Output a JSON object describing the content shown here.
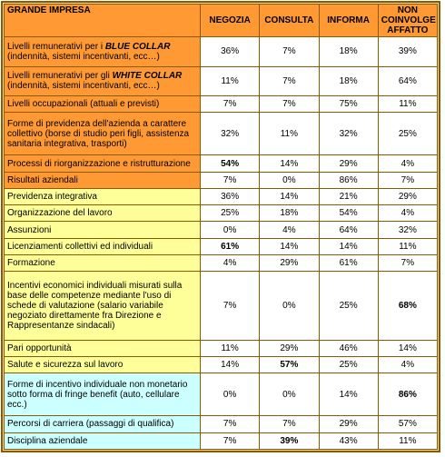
{
  "table": {
    "header": [
      "GRANDE IMPRESA",
      "NEGOZIA",
      "CONSULTA",
      "INFORMA",
      "NON COINVOLGE AFFATTO"
    ],
    "header_color": "#ff9933",
    "rows": [
      {
        "label": "Livelli remunerativi per i ",
        "label_em": "BLUE COLLAR",
        "label_rest": " (indennità, sistemi incentivanti, ecc…)",
        "values": [
          "36%",
          "7%",
          "18%",
          "39%"
        ],
        "color": "#ff9933"
      },
      {
        "label": "Livelli remunerativi per gli ",
        "label_em": "WHITE COLLAR",
        "label_rest": " (indennità, sistemi incentivanti, ecc…)",
        "values": [
          "11%",
          "7%",
          "18%",
          "64%"
        ],
        "color": "#ff9933"
      },
      {
        "label": "Livelli occupazionali (attuali e previsti)",
        "values": [
          "7%",
          "7%",
          "75%",
          "11%"
        ],
        "color": "#ff9933"
      },
      {
        "label": "Forme di previdenza dell'azienda a carattere collettivo (borse di studio peri figli, assistenza sanitaria integrativa, trasporti)",
        "values": [
          "32%",
          "11%",
          "32%",
          "25%"
        ],
        "color": "#ff9933"
      },
      {
        "label": "Processi di riorganizzazione e ristrutturazione",
        "values": [
          "54%",
          "14%",
          "29%",
          "4%"
        ],
        "color": "#ff9933",
        "bold": 0
      },
      {
        "label": "Risultati aziendali",
        "values": [
          "7%",
          "0%",
          "86%",
          "7%"
        ],
        "color": "#ff9933"
      },
      {
        "label": "Previdenza integrativa",
        "values": [
          "36%",
          "14%",
          "21%",
          "29%"
        ],
        "color": "#ffff99"
      },
      {
        "label": "Organizzazione del lavoro",
        "values": [
          "25%",
          "18%",
          "54%",
          "4%"
        ],
        "color": "#ffff99"
      },
      {
        "label": "Assunzioni",
        "values": [
          "0%",
          "4%",
          "64%",
          "32%"
        ],
        "color": "#ffff99"
      },
      {
        "label": "Licenziamenti collettivi ed individuali",
        "values": [
          "61%",
          "14%",
          "14%",
          "11%"
        ],
        "color": "#ffff99",
        "bold": 0
      },
      {
        "label": "Formazione",
        "values": [
          "4%",
          "29%",
          "61%",
          "7%"
        ],
        "color": "#ffff99"
      },
      {
        "label": "Incentivi economici individuali misurati sulla base delle competenze mediante l'uso di schede di valutazione (salario variabile negoziato direttamente fra Direzione e Rappresentanze sindacali)",
        "values": [
          "7%",
          "0%",
          "25%",
          "68%"
        ],
        "color": "#ffff99",
        "bold": 3
      },
      {
        "label": "Pari opportunità",
        "values": [
          "11%",
          "29%",
          "46%",
          "14%"
        ],
        "color": "#ffff99"
      },
      {
        "label": "Salute e sicurezza sul lavoro",
        "values": [
          "14%",
          "57%",
          "25%",
          "4%"
        ],
        "color": "#ffff99",
        "bold": 1
      },
      {
        "label": "Forme di incentivo individuale non monetario sotto forma di fringe benefit (auto, cellulare ecc.)",
        "values": [
          "0%",
          "0%",
          "14%",
          "86%"
        ],
        "color": "#ccffff",
        "bold": 3
      },
      {
        "label": "Percorsi di carriera (passaggi di qualifica)",
        "values": [
          "7%",
          "7%",
          "29%",
          "57%"
        ],
        "color": "#ccffff"
      },
      {
        "label": "Disciplina aziendale",
        "values": [
          "7%",
          "39%",
          "43%",
          "11%"
        ],
        "color": "#ccffff",
        "bold": 1
      }
    ]
  }
}
